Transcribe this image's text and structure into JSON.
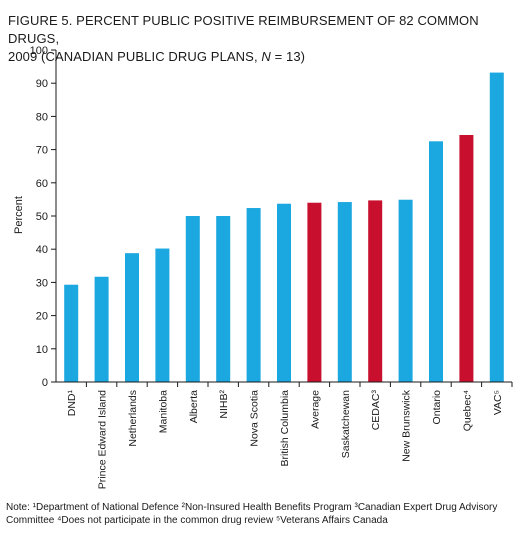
{
  "chart_data": {
    "type": "bar",
    "title_main": "FIGURE 5. PERCENT PUBLIC POSITIVE REIMBURSEMENT OF 82 COMMON DRUGS,",
    "title_line2_pre": "2009 (CANADIAN PUBLIC DRUG PLANS, ",
    "title_line2_var": "N",
    "title_line2_post": " = 13)",
    "ylabel": "Percent",
    "xlabel": "",
    "ylim": [
      0,
      100
    ],
    "yticks": [
      0,
      10,
      20,
      30,
      40,
      50,
      60,
      70,
      80,
      90,
      100
    ],
    "categories": [
      "DND¹",
      "Prince Edward Island",
      "Netherlands",
      "Manitoba",
      "Alberta",
      "NIHB²",
      "Nova Scotia",
      "British Columbia",
      "Average",
      "Saskatchewan",
      "CEDAC³",
      "New Brunswick",
      "Ontario",
      "Quebec⁴",
      "VAC⁵"
    ],
    "values": [
      29.3,
      31.7,
      38.8,
      40.2,
      50.0,
      50.0,
      52.4,
      53.7,
      54.0,
      54.2,
      54.7,
      54.9,
      72.5,
      74.4,
      93.2
    ],
    "highlight": [
      false,
      false,
      false,
      false,
      false,
      false,
      false,
      false,
      true,
      false,
      true,
      false,
      false,
      true,
      false
    ],
    "colors": {
      "bar": "#1ba7df",
      "highlight": "#c8102e",
      "axis": "#1a1a1a"
    }
  },
  "note": "Note: ¹Department of National Defence ²Non-Insured Health Benefits Program ³Canadian Expert Drug Advisory Committee ⁴Does not participate in the common drug review ⁵Veterans Affairs Canada"
}
